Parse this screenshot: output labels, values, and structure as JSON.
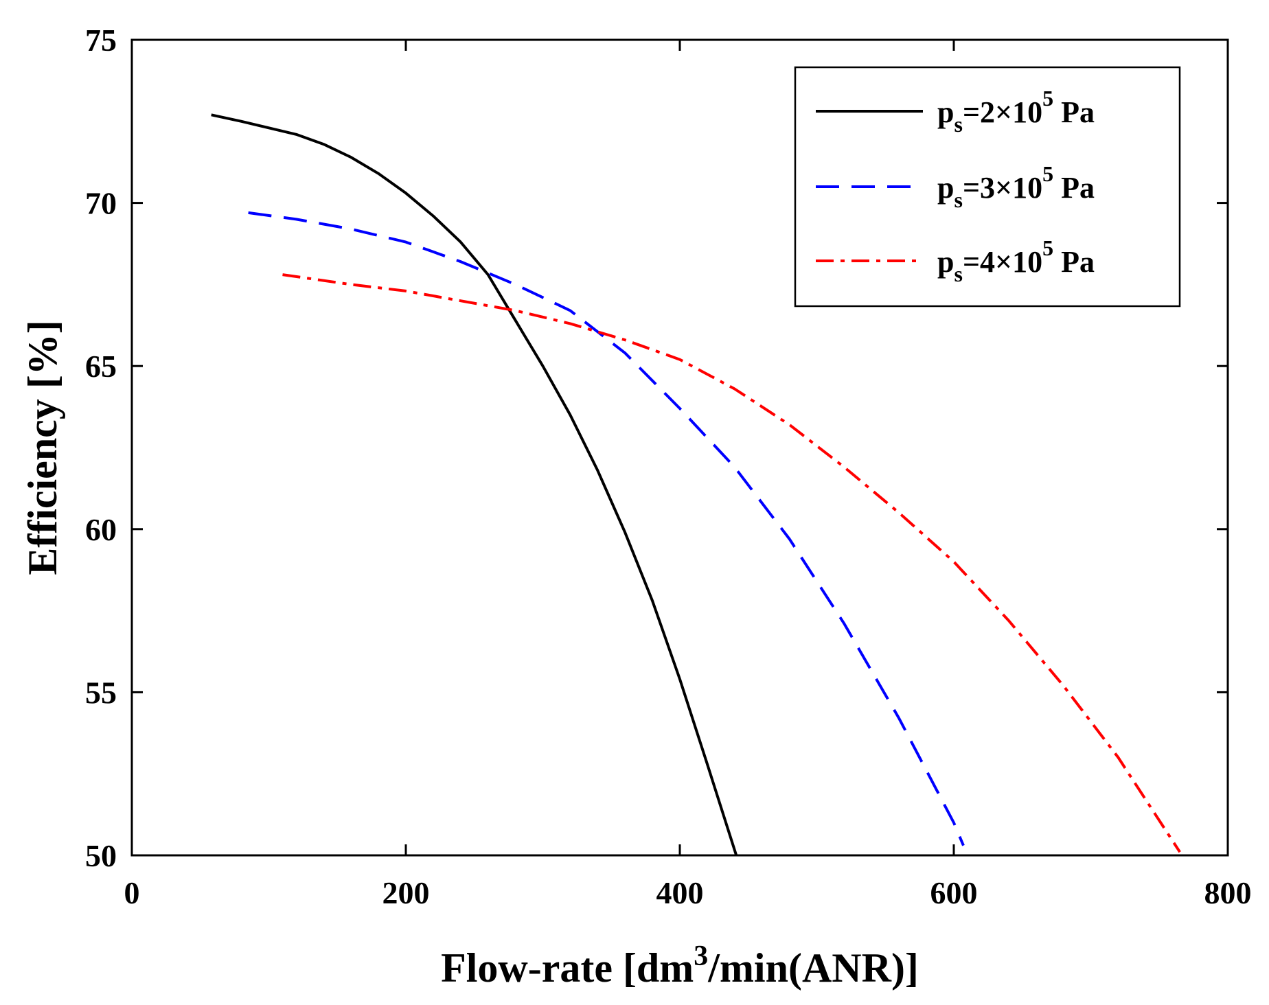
{
  "chart_data": {
    "type": "line",
    "title": "",
    "xlabel": {
      "main": "Flow-rate [dm",
      "sup": "3",
      "tail": "/min(ANR)]"
    },
    "ylabel": "Efficiency [%]",
    "xlim": [
      0,
      800
    ],
    "ylim": [
      50,
      75
    ],
    "xticks": [
      0,
      200,
      400,
      600,
      800
    ],
    "yticks": [
      50,
      55,
      60,
      65,
      70,
      75
    ],
    "grid": false,
    "legend_position": "top-right",
    "series": [
      {
        "name": "ps=2×10^5 Pa",
        "legend": {
          "p": "p",
          "sub": "s",
          "mid": "=2×10",
          "sup": "5",
          "unit": " Pa"
        },
        "color": "#000000",
        "style": "solid",
        "x": [
          58,
          80,
          100,
          120,
          140,
          160,
          180,
          200,
          220,
          240,
          260,
          280,
          300,
          320,
          340,
          360,
          380,
          400,
          420,
          445
        ],
        "y": [
          72.7,
          72.5,
          72.3,
          72.1,
          71.8,
          71.4,
          70.9,
          70.3,
          69.6,
          68.8,
          67.8,
          66.4,
          65.0,
          63.5,
          61.8,
          59.9,
          57.8,
          55.4,
          52.8,
          49.5
        ]
      },
      {
        "name": "ps=3×10^5 Pa",
        "legend": {
          "p": "p",
          "sub": "s",
          "mid": "=3×10",
          "sup": "5",
          "unit": " Pa"
        },
        "color": "#0000ff",
        "style": "dashed",
        "x": [
          85,
          120,
          160,
          200,
          240,
          280,
          320,
          360,
          400,
          440,
          480,
          520,
          560,
          600,
          607
        ],
        "y": [
          69.7,
          69.5,
          69.2,
          68.8,
          68.2,
          67.5,
          66.7,
          65.4,
          63.7,
          61.9,
          59.7,
          57.1,
          54.2,
          51.0,
          50.3
        ]
      },
      {
        "name": "ps=4×10^5 Pa",
        "legend": {
          "p": "p",
          "sub": "s",
          "mid": "=4×10",
          "sup": "5",
          "unit": " Pa"
        },
        "color": "#ff0000",
        "style": "dashdot",
        "x": [
          110,
          160,
          200,
          240,
          280,
          320,
          360,
          400,
          440,
          480,
          520,
          560,
          600,
          640,
          680,
          720,
          765
        ],
        "y": [
          67.8,
          67.5,
          67.3,
          67.0,
          66.7,
          66.3,
          65.8,
          65.2,
          64.3,
          63.2,
          61.9,
          60.5,
          59.0,
          57.2,
          55.2,
          53.0,
          50.1
        ]
      }
    ]
  }
}
